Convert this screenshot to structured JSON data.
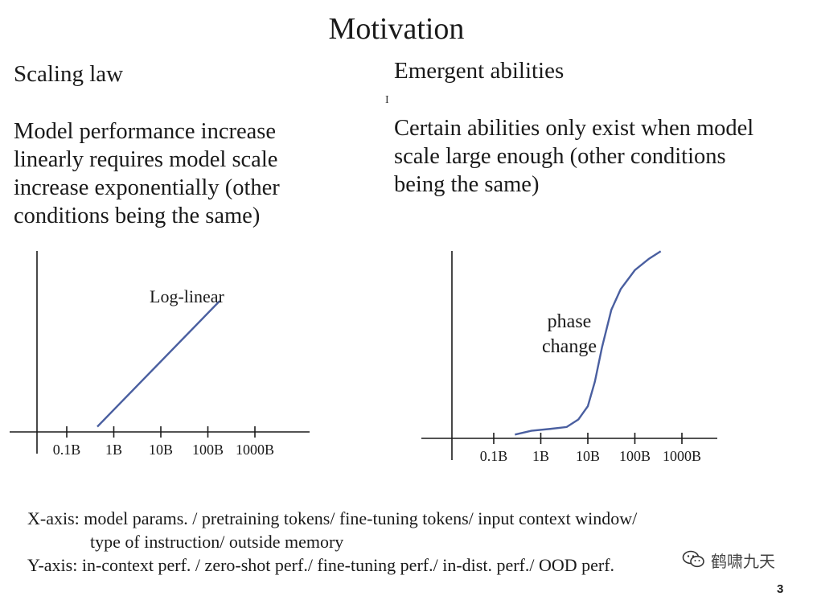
{
  "slide": {
    "title": "Motivation",
    "page_number": "3",
    "cursor_glyph": "I"
  },
  "left": {
    "heading": "Scaling law",
    "body_lines": [
      "Model performance increase",
      "linearly requires model scale",
      "increase exponentially (other",
      "conditions being the same)"
    ]
  },
  "right": {
    "heading": "Emergent abilities",
    "body_lines": [
      "Certain abilities only exist when model",
      "scale large enough (other conditions",
      "being the same)"
    ]
  },
  "captions": {
    "x_axis_line1": "X-axis: model params. / pretraining tokens/ fine-tuning tokens/ input context window/",
    "x_axis_line2": "type of instruction/ outside memory",
    "y_axis": "Y-axis: in-context perf. / zero-shot perf./ fine-tuning perf./ in-dist. perf./ OOD perf."
  },
  "watermark": {
    "text": "鹤啸九天",
    "icon": "wechat-icon"
  },
  "colors": {
    "curve": "#4a5fa0",
    "axis": "#1a1a1a",
    "text": "#1a1a1a"
  },
  "chart_data": [
    {
      "type": "line",
      "title": "",
      "annotation": "Log-linear",
      "xlabel": "",
      "ylabel": "",
      "x_scale": "log",
      "categories": [
        "0.1B",
        "1B",
        "10B",
        "100B",
        "1000B"
      ],
      "x_log10": [
        -0.35,
        2.25
      ],
      "y": [
        0.03,
        0.75
      ],
      "ylim": [
        0,
        1
      ],
      "grid": false
    },
    {
      "type": "line",
      "title": "",
      "annotation_lines": [
        "phase",
        "change"
      ],
      "xlabel": "",
      "ylabel": "",
      "x_scale": "log",
      "categories": [
        "0.1B",
        "1B",
        "10B",
        "100B",
        "1000B"
      ],
      "x_log10": [
        -0.55,
        -0.2,
        0.2,
        0.55,
        0.8,
        1.0,
        1.15,
        1.3,
        1.5,
        1.7,
        2.0,
        2.3,
        2.55
      ],
      "y": [
        0.02,
        0.04,
        0.05,
        0.06,
        0.1,
        0.17,
        0.3,
        0.48,
        0.68,
        0.79,
        0.89,
        0.95,
        0.99
      ],
      "ylim": [
        0,
        1
      ],
      "grid": false
    }
  ]
}
